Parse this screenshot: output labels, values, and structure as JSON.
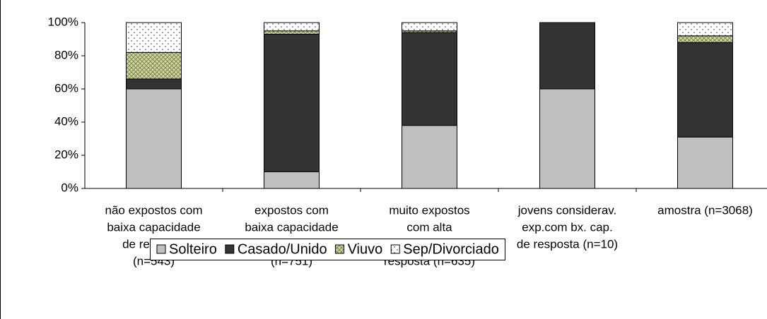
{
  "chart_data": {
    "type": "stacked_bar",
    "categories": [
      [
        "não expostos com",
        "baixa capacidade",
        "de resposta",
        "(n=543)"
      ],
      [
        "expostos com",
        "baixa capacidade",
        "de resposta",
        "(n=751)"
      ],
      [
        "muito expostos",
        "com alta",
        "capacidade de",
        "resposta (n=635)"
      ],
      [
        "jovens considerav.",
        "exp.com bx. cap.",
        "de resposta (n=10)"
      ],
      [
        "amostra (n=3068)"
      ]
    ],
    "series": [
      {
        "name": "Solteiro",
        "color": "#c0c0c0",
        "values": [
          60,
          10,
          38,
          60,
          31
        ]
      },
      {
        "name": "Casado/Unido",
        "color": "#333333",
        "values": [
          6,
          83,
          56,
          40,
          57
        ]
      },
      {
        "name": "Viuvo",
        "color": "#d4d49a",
        "pattern": "crosshatch",
        "values": [
          16,
          2,
          1,
          0,
          4
        ]
      },
      {
        "name": "Sep/Divorciado",
        "color": "#ffffff",
        "pattern": "dots",
        "values": [
          18,
          5,
          5,
          0,
          8
        ]
      }
    ],
    "ylim": [
      0,
      100
    ],
    "yticks": [
      {
        "value": 0,
        "label": "0%"
      },
      {
        "value": 20,
        "label": "20%"
      },
      {
        "value": 40,
        "label": "40%"
      },
      {
        "value": 60,
        "label": "60%"
      },
      {
        "value": 80,
        "label": "80%"
      },
      {
        "value": 100,
        "label": "100%"
      }
    ],
    "legend": "bottom"
  }
}
